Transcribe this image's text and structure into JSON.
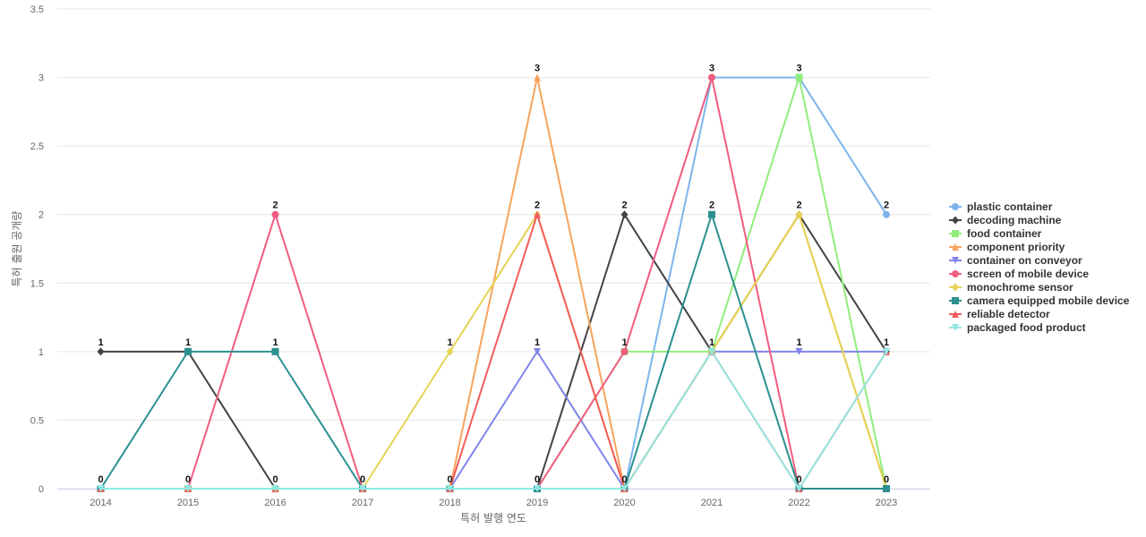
{
  "chart_data": {
    "type": "line",
    "title": "",
    "xlabel": "특허 발행 연도",
    "ylabel": "특허 출원 공개량",
    "categories": [
      "2014",
      "2015",
      "2016",
      "2017",
      "2018",
      "2019",
      "2020",
      "2021",
      "2022",
      "2023"
    ],
    "ylim": [
      0,
      3.5
    ],
    "yticks": [
      "0",
      "0.5",
      "1",
      "1.5",
      "2",
      "2.5",
      "3",
      "3.5"
    ],
    "grid": true,
    "legend_position": "right",
    "series": [
      {
        "name": "plastic container",
        "color": "#7cb5ec",
        "marker": "circle",
        "values": [
          0,
          0,
          0,
          0,
          0,
          0,
          0,
          3,
          3,
          2
        ]
      },
      {
        "name": "decoding machine",
        "color": "#434348",
        "marker": "diamond",
        "values": [
          1,
          1,
          0,
          0,
          0,
          0,
          2,
          1,
          2,
          1
        ]
      },
      {
        "name": "food container",
        "color": "#90ed7d",
        "marker": "square",
        "values": [
          0,
          0,
          0,
          0,
          0,
          0,
          1,
          1,
          3,
          0
        ]
      },
      {
        "name": "component priority",
        "color": "#f7a35c",
        "marker": "triangle",
        "values": [
          0,
          0,
          0,
          0,
          0,
          3,
          0,
          1,
          2,
          0
        ]
      },
      {
        "name": "container on conveyor",
        "color": "#8085e9",
        "marker": "triangle-down",
        "values": [
          0,
          0,
          0,
          0,
          0,
          1,
          0,
          1,
          1,
          1
        ]
      },
      {
        "name": "screen of mobile device",
        "color": "#f15c80",
        "marker": "circle",
        "values": [
          0,
          0,
          2,
          0,
          0,
          0,
          1,
          3,
          0,
          0
        ]
      },
      {
        "name": "monochrome sensor",
        "color": "#e4d354",
        "marker": "diamond",
        "values": [
          0,
          0,
          0,
          0,
          1,
          2,
          0,
          1,
          2,
          0
        ]
      },
      {
        "name": "camera equipped mobile device",
        "color": "#2b908f",
        "marker": "square",
        "values": [
          0,
          1,
          1,
          0,
          0,
          0,
          0,
          2,
          0,
          0
        ]
      },
      {
        "name": "reliable detector",
        "color": "#f45b5b",
        "marker": "triangle",
        "values": [
          0,
          0,
          0,
          0,
          0,
          2,
          0,
          1,
          0,
          1
        ]
      },
      {
        "name": "packaged food product",
        "color": "#91e8e1",
        "marker": "triangle-down",
        "values": [
          0,
          0,
          0,
          0,
          0,
          0,
          0,
          1,
          0,
          1
        ]
      }
    ],
    "data_labels": [
      {
        "category": "2014",
        "labels": [
          "1",
          "0"
        ]
      },
      {
        "category": "2015",
        "labels": [
          "1",
          "0"
        ]
      },
      {
        "category": "2016",
        "labels": [
          "2",
          "1",
          "0"
        ]
      },
      {
        "category": "2017",
        "labels": [
          "0"
        ]
      },
      {
        "category": "2018",
        "labels": [
          "1",
          "0"
        ]
      },
      {
        "category": "2019",
        "labels": [
          "3",
          "2",
          "1",
          "0"
        ]
      },
      {
        "category": "2020",
        "labels": [
          "2",
          "1",
          "0"
        ]
      },
      {
        "category": "2021",
        "labels": [
          "3",
          "2",
          "1"
        ]
      },
      {
        "category": "2022",
        "labels": [
          "3",
          "2",
          "1",
          "0"
        ]
      },
      {
        "category": "2023",
        "labels": [
          "2",
          "1",
          "0"
        ]
      }
    ]
  }
}
